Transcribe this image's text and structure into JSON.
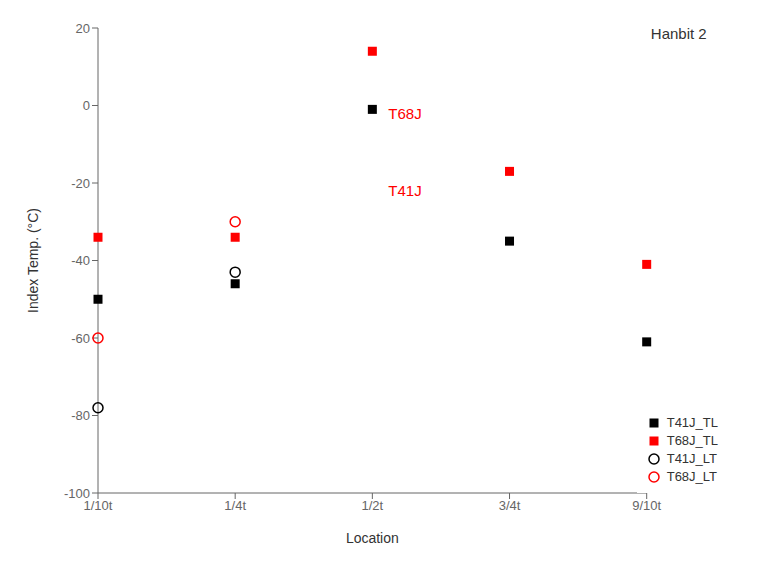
{
  "chart_data": {
    "type": "scatter",
    "xlabel": "Location",
    "ylabel": "Index Temp. (°C)",
    "categories": [
      "1/10t",
      "1/4t",
      "1/2t",
      "3/4t",
      "9/10t"
    ],
    "ylim": [
      -100,
      20
    ],
    "yticks": [
      -100,
      -80,
      -60,
      -40,
      -20,
      0,
      20
    ],
    "grid": false,
    "legend": "lower right",
    "series": [
      {
        "name": "T41J_TL",
        "color": "#000000",
        "marker": "square",
        "values": [
          -50,
          -46,
          -1,
          -35,
          -61
        ]
      },
      {
        "name": "T68J_TL",
        "color": "#FF0000",
        "marker": "square",
        "values": [
          -34,
          -34,
          14,
          -17,
          -41
        ]
      },
      {
        "name": "T41J_LT",
        "color": "#000000",
        "marker": "open_circle",
        "values": [
          -78,
          -43,
          null,
          null,
          null
        ]
      },
      {
        "name": "T68J_LT",
        "color": "#FF0000",
        "marker": "open_circle",
        "values": [
          -60,
          -30,
          null,
          null,
          null
        ]
      }
    ],
    "annotations": [
      {
        "text": "T68J",
        "x": "1/2t",
        "y": -2,
        "color": "#FF0000"
      },
      {
        "text": "T41J",
        "x": "1/2t",
        "y": -22,
        "color": "#FF0000"
      },
      {
        "text": "Hanbit 2",
        "x": "9/10t",
        "y": 18.5
      }
    ]
  }
}
